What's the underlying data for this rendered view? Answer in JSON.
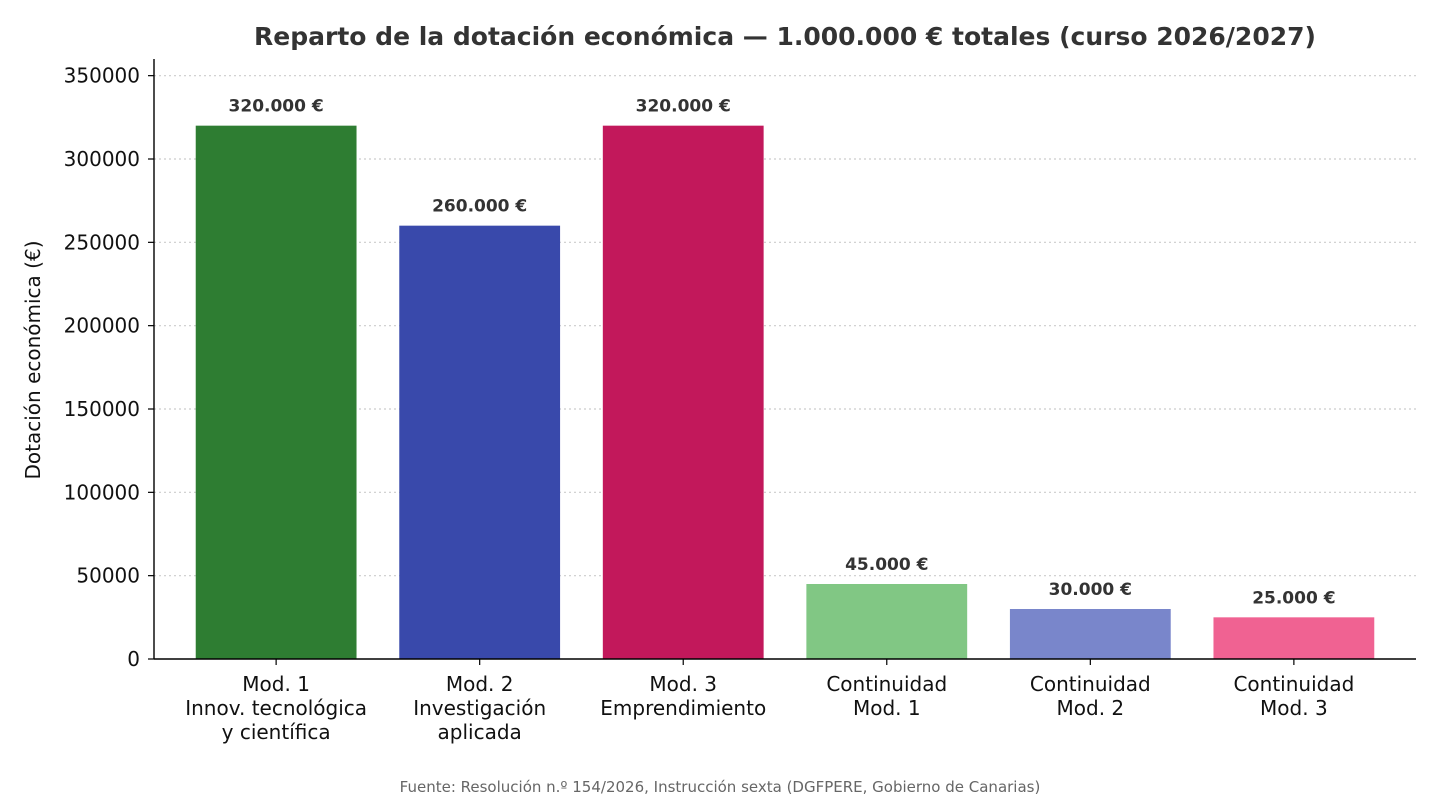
{
  "chart_data": {
    "type": "bar",
    "title": "Reparto de la dotación económica — 1.000.000 € totales (curso 2026/2027)",
    "ylabel": "Dotación económica (€)",
    "xlabel": "",
    "ylim": [
      0,
      360000
    ],
    "yticks": [
      0,
      50000,
      100000,
      150000,
      200000,
      250000,
      300000,
      350000
    ],
    "ytick_labels": [
      "0",
      "50000",
      "100000",
      "150000",
      "200000",
      "250000",
      "300000",
      "350000"
    ],
    "grid": "horizontal dotted",
    "categories": [
      [
        "Mod. 1",
        "Innov. tecnológica",
        "y científica"
      ],
      [
        "Mod. 2",
        "Investigación",
        "aplicada"
      ],
      [
        "Mod. 3",
        "Emprendimiento"
      ],
      [
        "Continuidad",
        "Mod. 1"
      ],
      [
        "Continuidad",
        "Mod. 2"
      ],
      [
        "Continuidad",
        "Mod. 3"
      ]
    ],
    "values": [
      320000,
      260000,
      320000,
      45000,
      30000,
      25000
    ],
    "data_labels": [
      "320.000 €",
      "260.000 €",
      "320.000 €",
      "45.000 €",
      "30.000 €",
      "25.000 €"
    ],
    "colors": [
      "#2e7d32",
      "#3949ab",
      "#c2185b",
      "#81c784",
      "#7986cb",
      "#f06292"
    ],
    "source": "Fuente: Resolución n.º 154/2026, Instrucción sexta (DGFPERE, Gobierno de Canarias)"
  }
}
